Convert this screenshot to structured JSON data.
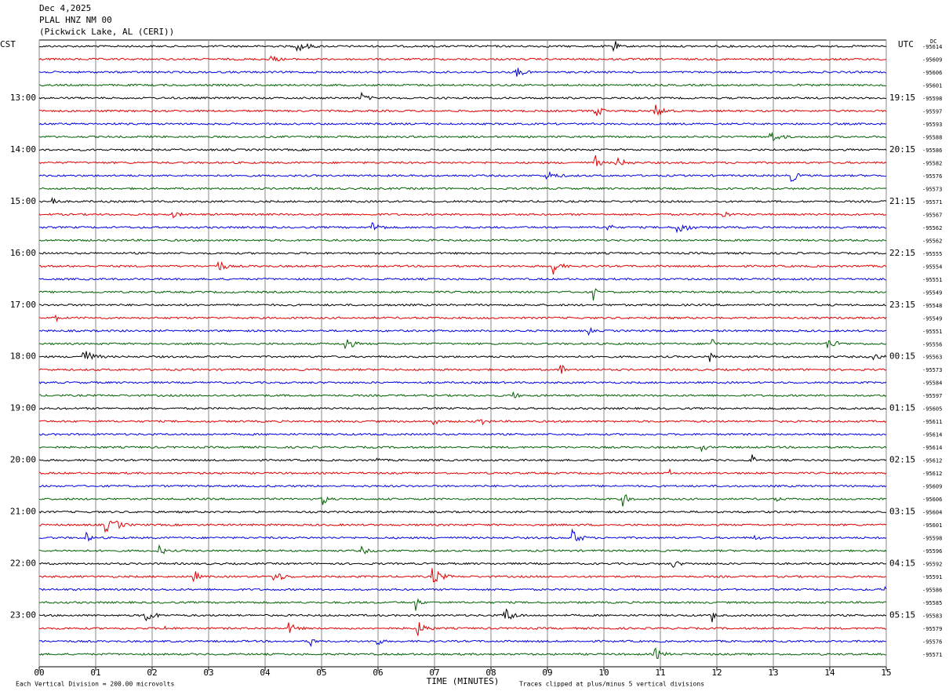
{
  "chart_data": {
    "type": "line",
    "title": [
      "Dec 4,2025",
      "PLAL HNZ NM 00",
      "(Pickwick Lake, AL (CERI))"
    ],
    "left_zone": "CST",
    "right_zone": "UTC",
    "offset_header": "DC",
    "xlabel": "TIME (MINUTES)",
    "scale_note": "Each Vertical Division =  200.00 microvolts",
    "clip_note": "Traces clipped at plus/minus 5 vertical divisions",
    "xlim": [
      0,
      15
    ],
    "xticks": [
      {
        "value": 0,
        "label": "00"
      },
      {
        "value": 1,
        "label": "01"
      },
      {
        "value": 2,
        "label": "02"
      },
      {
        "value": 3,
        "label": "03"
      },
      {
        "value": 4,
        "label": "04"
      },
      {
        "value": 5,
        "label": "05"
      },
      {
        "value": 6,
        "label": "06"
      },
      {
        "value": 7,
        "label": "07"
      },
      {
        "value": 8,
        "label": "08"
      },
      {
        "value": 9,
        "label": "09"
      },
      {
        "value": 10,
        "label": "10"
      },
      {
        "value": 11,
        "label": "11"
      },
      {
        "value": 12,
        "label": "12"
      },
      {
        "value": 13,
        "label": "13"
      },
      {
        "value": 14,
        "label": "14"
      },
      {
        "value": 15,
        "label": "15"
      }
    ],
    "grid": true,
    "trace_colors": [
      "#000000",
      "#e00000",
      "#0000e0",
      "#006000"
    ],
    "left_labels": [
      "13:00",
      "14:00",
      "15:00",
      "16:00",
      "17:00",
      "18:00",
      "19:00",
      "20:00",
      "21:00",
      "22:00",
      "23:00"
    ],
    "right_labels": [
      "19:15",
      "20:15",
      "21:15",
      "22:15",
      "23:15",
      "00:15",
      "01:15",
      "02:15",
      "03:15",
      "04:15",
      "05:15"
    ],
    "dc_offsets": [
      -95614,
      -95609,
      -95606,
      -95601,
      -95598,
      -95597,
      -95593,
      -95588,
      -95586,
      -95582,
      -95576,
      -95573,
      -95571,
      -95567,
      -95562,
      -95562,
      -95555,
      -95554,
      -95551,
      -95549,
      -95548,
      -95549,
      -95551,
      -95556,
      -95563,
      -95573,
      -95584,
      -95597,
      -95605,
      -95611,
      -95614,
      -95614,
      -95612,
      -95612,
      -95609,
      -95606,
      -95604,
      -95601,
      -95598,
      -95596,
      -95592,
      -95591,
      -95586,
      -95585,
      -95583,
      -95579,
      -95576,
      -95571
    ]
  }
}
